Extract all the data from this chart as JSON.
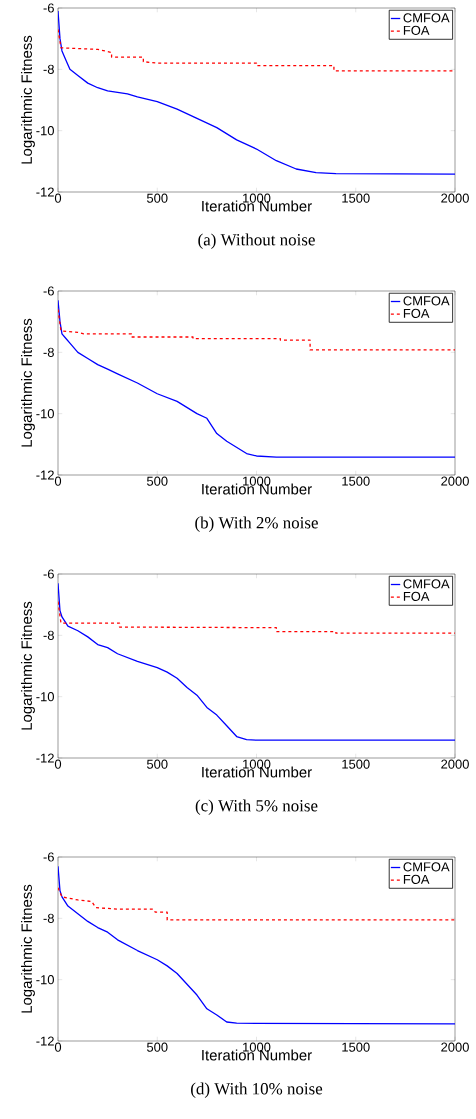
{
  "chart_data": [
    {
      "type": "line",
      "title": "(a) Without noise",
      "xlabel": "Iteration Number",
      "ylabel": "Logarithmic Fitness",
      "xlim": [
        0,
        2000
      ],
      "ylim": [
        -12,
        -6
      ],
      "xticks": [
        0,
        500,
        1000,
        1500,
        2000
      ],
      "yticks": [
        -12,
        -10,
        -8,
        -6
      ],
      "legend": "top right",
      "grid": false,
      "series": [
        {
          "name": "CMFOA",
          "color": "#0000ff",
          "line_style": "solid",
          "x": [
            0,
            10,
            20,
            40,
            60,
            100,
            150,
            200,
            250,
            350,
            400,
            500,
            600,
            700,
            800,
            900,
            1000,
            1100,
            1200,
            1300,
            1400,
            2000
          ],
          "values": [
            -6.1,
            -7.0,
            -7.4,
            -7.7,
            -8.0,
            -8.2,
            -8.45,
            -8.6,
            -8.7,
            -8.8,
            -8.9,
            -9.05,
            -9.3,
            -9.6,
            -9.9,
            -10.3,
            -10.6,
            -10.98,
            -11.25,
            -11.37,
            -11.4,
            -11.42
          ]
        },
        {
          "name": "FOA",
          "color": "#ff0000",
          "line_style": "dashed",
          "x": [
            0,
            15,
            200,
            270,
            270,
            430,
            430,
            500,
            1000,
            1000,
            1390,
            1390,
            2000
          ],
          "values": [
            -6.7,
            -7.3,
            -7.35,
            -7.45,
            -7.6,
            -7.6,
            -7.75,
            -7.8,
            -7.8,
            -7.88,
            -7.88,
            -8.05,
            -8.05
          ]
        }
      ]
    },
    {
      "type": "line",
      "title": "(b) With 2% noise",
      "xlabel": "Iteration Number",
      "ylabel": "Logarithmic Fitness",
      "xlim": [
        0,
        2000
      ],
      "ylim": [
        -12,
        -6
      ],
      "xticks": [
        0,
        500,
        1000,
        1500,
        2000
      ],
      "yticks": [
        -12,
        -10,
        -8,
        -6
      ],
      "legend": "top right",
      "grid": false,
      "series": [
        {
          "name": "CMFOA",
          "color": "#0000ff",
          "line_style": "solid",
          "x": [
            0,
            10,
            20,
            40,
            60,
            100,
            150,
            200,
            250,
            300,
            400,
            500,
            600,
            700,
            750,
            800,
            850,
            900,
            950,
            1000,
            1100,
            2000
          ],
          "values": [
            -6.3,
            -7.0,
            -7.4,
            -7.55,
            -7.7,
            -8.0,
            -8.2,
            -8.4,
            -8.55,
            -8.7,
            -9.0,
            -9.35,
            -9.6,
            -10.0,
            -10.15,
            -10.65,
            -10.9,
            -11.1,
            -11.3,
            -11.38,
            -11.42,
            -11.42
          ]
        },
        {
          "name": "FOA",
          "color": "#ff0000",
          "line_style": "dashed",
          "x": [
            0,
            15,
            100,
            130,
            370,
            370,
            680,
            680,
            1120,
            1120,
            1270,
            1270,
            2000
          ],
          "values": [
            -6.6,
            -7.3,
            -7.35,
            -7.4,
            -7.4,
            -7.5,
            -7.5,
            -7.55,
            -7.55,
            -7.6,
            -7.6,
            -7.92,
            -7.92
          ]
        }
      ]
    },
    {
      "type": "line",
      "title": "(c) With 5% noise",
      "xlabel": "Iteration Number",
      "ylabel": "Logarithmic Fitness",
      "xlim": [
        0,
        2000
      ],
      "ylim": [
        -12,
        -6
      ],
      "xticks": [
        0,
        500,
        1000,
        1500,
        2000
      ],
      "yticks": [
        -12,
        -10,
        -8,
        -6
      ],
      "legend": "top right",
      "grid": false,
      "series": [
        {
          "name": "CMFOA",
          "color": "#0000ff",
          "line_style": "solid",
          "x": [
            0,
            10,
            20,
            50,
            100,
            150,
            200,
            250,
            300,
            400,
            500,
            550,
            600,
            650,
            700,
            750,
            800,
            850,
            900,
            950,
            1000,
            2000
          ],
          "values": [
            -6.3,
            -7.2,
            -7.4,
            -7.7,
            -7.85,
            -8.05,
            -8.3,
            -8.4,
            -8.6,
            -8.85,
            -9.05,
            -9.2,
            -9.4,
            -9.7,
            -9.95,
            -10.35,
            -10.6,
            -10.95,
            -11.3,
            -11.4,
            -11.42,
            -11.42
          ]
        },
        {
          "name": "FOA",
          "color": "#ff0000",
          "line_style": "dashed",
          "x": [
            0,
            15,
            310,
            310,
            1100,
            1100,
            1400,
            1400,
            2000
          ],
          "values": [
            -6.9,
            -7.6,
            -7.6,
            -7.73,
            -7.75,
            -7.88,
            -7.88,
            -7.93,
            -7.93
          ]
        }
      ]
    },
    {
      "type": "line",
      "title": "(d) With 10% noise",
      "xlabel": "Iteration Number",
      "ylabel": "Logarithmic Fitness",
      "xlim": [
        0,
        2000
      ],
      "ylim": [
        -12,
        -6
      ],
      "xticks": [
        0,
        500,
        1000,
        1500,
        2000
      ],
      "yticks": [
        -12,
        -10,
        -8,
        -6
      ],
      "legend": "top right",
      "grid": false,
      "series": [
        {
          "name": "CMFOA",
          "color": "#0000ff",
          "line_style": "solid",
          "x": [
            0,
            10,
            20,
            50,
            100,
            150,
            200,
            250,
            300,
            400,
            500,
            550,
            600,
            650,
            700,
            750,
            800,
            850,
            900,
            2000
          ],
          "values": [
            -6.3,
            -7.1,
            -7.3,
            -7.6,
            -7.85,
            -8.1,
            -8.3,
            -8.45,
            -8.7,
            -9.05,
            -9.35,
            -9.55,
            -9.8,
            -10.15,
            -10.5,
            -10.95,
            -11.15,
            -11.38,
            -11.42,
            -11.44
          ]
        },
        {
          "name": "FOA",
          "color": "#ff0000",
          "line_style": "dashed",
          "x": [
            0,
            20,
            100,
            170,
            190,
            300,
            480,
            490,
            550,
            550,
            2000
          ],
          "values": [
            -7.0,
            -7.3,
            -7.4,
            -7.45,
            -7.65,
            -7.7,
            -7.7,
            -7.8,
            -7.8,
            -8.05,
            -8.05
          ]
        }
      ]
    }
  ]
}
